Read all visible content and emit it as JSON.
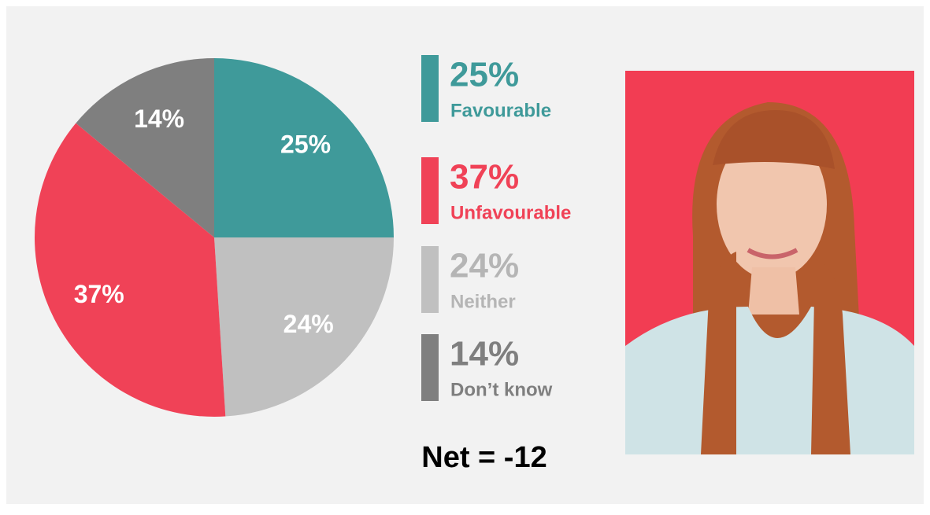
{
  "chart_data": {
    "type": "pie",
    "categories": [
      "Favourable",
      "Neither",
      "Unfavourable",
      "Don’t know"
    ],
    "values": [
      25,
      24,
      37,
      14
    ],
    "value_labels": [
      "25%",
      "24%",
      "37%",
      "14%"
    ],
    "colors": [
      "#3f9a9a",
      "#c0c0c0",
      "#f04257",
      "#7f7f7f"
    ],
    "legend_text_colors": [
      "#3f9a9a",
      "#b5b5b5",
      "#f04257",
      "#7f7f7f"
    ],
    "net_label": "Net = -12"
  }
}
